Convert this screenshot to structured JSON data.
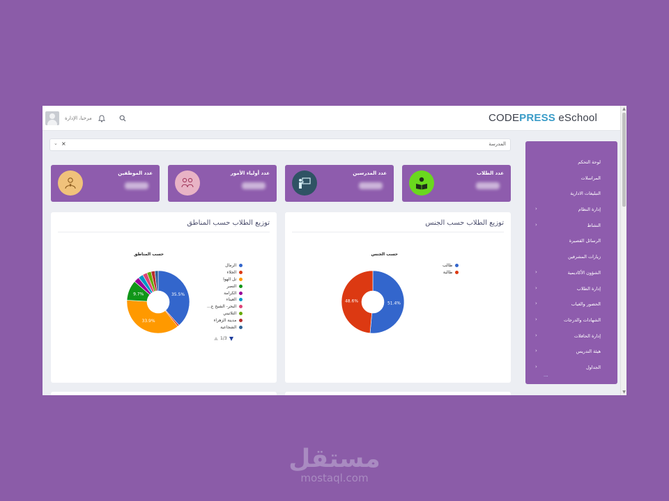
{
  "app": {
    "logo_prefix": "CODE",
    "logo_accent": "PRESS",
    "logo_suffix": " eSchool",
    "greeting": "مرحبا، الإدارة"
  },
  "school_select": {
    "value": "المدرسة",
    "clear": "×",
    "arrow": "⌄"
  },
  "stats": [
    {
      "title": "عدد الطلاب",
      "icon": "reading-student-icon",
      "icon_bg": "#6ad81e"
    },
    {
      "title": "عدد المدرسين",
      "icon": "teacher-board-icon",
      "icon_bg": "#2f5364"
    },
    {
      "title": "عدد أولياء الأمور",
      "icon": "parents-group-icon",
      "icon_bg": "#e8b3c5"
    },
    {
      "title": "عدد الموظفين",
      "icon": "employee-icon",
      "icon_bg": "#f0c27b"
    }
  ],
  "gender_panel": {
    "heading": "توزيع الطلاب حسب الجنس",
    "chart_title": "حسب الجنس"
  },
  "region_panel": {
    "heading": "توزيع الطلاب حسب المناطق",
    "chart_title": "حسب المناطق",
    "pager": "1/3"
  },
  "sidebar": {
    "items": [
      {
        "label": "لوحة التحكم",
        "has_children": false
      },
      {
        "label": "المراسلات",
        "has_children": false
      },
      {
        "label": "التبليغات الادارية",
        "has_children": false
      },
      {
        "label": "إدارة النظام",
        "has_children": true
      },
      {
        "label": "النشاط",
        "has_children": true
      },
      {
        "label": "الرسائل القصيرة",
        "has_children": false
      },
      {
        "label": "زيارات المشرفين",
        "has_children": false
      },
      {
        "label": "الشؤون الأكاديمية",
        "has_children": true
      },
      {
        "label": "إدارة الطلاب",
        "has_children": true
      },
      {
        "label": "الحضور والغياب",
        "has_children": true
      },
      {
        "label": "الشهادات والدرجات",
        "has_children": true
      },
      {
        "label": "إدارة الحافلات",
        "has_children": true
      },
      {
        "label": "هيئة التدريس",
        "has_children": true
      },
      {
        "label": "الجداول",
        "has_children": true
      }
    ],
    "more": "..."
  },
  "chart_data": [
    {
      "type": "pie",
      "title": "حسب الجنس",
      "categories": [
        "طالب",
        "طالبة"
      ],
      "values": [
        51.4,
        48.6
      ],
      "colors": [
        "#3366cc",
        "#dc3912"
      ],
      "slice_labels": [
        "51.4%",
        "48.6%"
      ],
      "donut": true,
      "legend": "right"
    },
    {
      "type": "pie",
      "title": "حسب المناطق",
      "categories": [
        "الرمال",
        "الجلاء",
        "تل الهوا",
        "النصر",
        "الكرامة",
        "العيناء",
        "البحر- الشيخ ع...",
        "التلاتيني",
        "مدينة الزهراء",
        "الشجاعية"
      ],
      "values": [
        35.5,
        0.8,
        33.9,
        9.7,
        2.6,
        2.4,
        2.2,
        2.0,
        1.8,
        1.6
      ],
      "colors": [
        "#3366cc",
        "#dc3912",
        "#ff9900",
        "#109618",
        "#990099",
        "#0099c6",
        "#dd4477",
        "#66aa00",
        "#b82e2e",
        "#316395"
      ],
      "slice_labels": [
        "35.5%",
        "",
        "33.9%",
        "9.7%",
        "",
        "",
        "",
        "",
        "",
        ""
      ],
      "donut": true,
      "legend": "right",
      "legend_pages": "1/3"
    }
  ]
}
